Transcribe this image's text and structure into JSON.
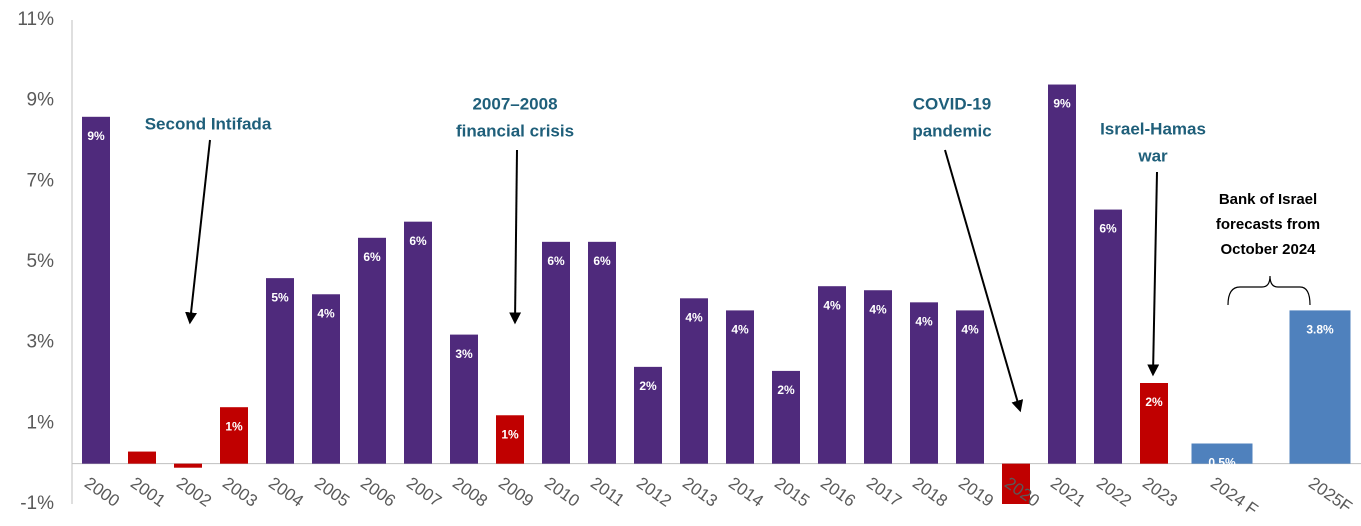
{
  "chart_data": {
    "type": "bar",
    "categories": [
      "2000",
      "2001",
      "2002",
      "2003",
      "2004",
      "2005",
      "2006",
      "2007",
      "2008",
      "2009",
      "2010",
      "2011",
      "2012",
      "2013",
      "2014",
      "2015",
      "2016",
      "2017",
      "2018",
      "2019",
      "2020",
      "2021",
      "2022",
      "2023",
      "2024 F",
      "2025F"
    ],
    "values": [
      8.6,
      0.3,
      -0.1,
      1.4,
      4.6,
      4.2,
      5.6,
      6.0,
      3.2,
      1.2,
      5.5,
      5.5,
      2.4,
      4.1,
      3.8,
      2.3,
      4.4,
      4.3,
      4.0,
      3.8,
      -1.0,
      9.4,
      6.3,
      2.0,
      0.5,
      3.8
    ],
    "value_labels": [
      "9%",
      null,
      null,
      "1%",
      "5%",
      "4%",
      "6%",
      "6%",
      "3%",
      "1%",
      "6%",
      "6%",
      "2%",
      "4%",
      "4%",
      "2%",
      "4%",
      "4%",
      "4%",
      "4%",
      null,
      "9%",
      "6%",
      "2%",
      "0.5%",
      "3.8%"
    ],
    "colors": [
      "#4f2a7c",
      "#c00000",
      "#c00000",
      "#c00000",
      "#4f2a7c",
      "#4f2a7c",
      "#4f2a7c",
      "#4f2a7c",
      "#4f2a7c",
      "#c00000",
      "#4f2a7c",
      "#4f2a7c",
      "#4f2a7c",
      "#4f2a7c",
      "#4f2a7c",
      "#4f2a7c",
      "#4f2a7c",
      "#4f2a7c",
      "#4f2a7c",
      "#4f2a7c",
      "#c00000",
      "#4f2a7c",
      "#4f2a7c",
      "#c00000",
      "#4f81bd",
      "#4f81bd"
    ],
    "ylim": [
      -1,
      11
    ],
    "yticks": [
      {
        "value": 11,
        "label": "11%"
      },
      {
        "value": 9,
        "label": "9%"
      },
      {
        "value": 7,
        "label": "7%"
      },
      {
        "value": 5,
        "label": "5%"
      },
      {
        "value": 3,
        "label": "3%"
      },
      {
        "value": 1,
        "label": "1%"
      },
      {
        "value": -1,
        "label": "-1%"
      }
    ],
    "annotations": [
      {
        "lines": [
          "Second Intifada"
        ]
      },
      {
        "lines": [
          "2007–2008",
          "financial crisis"
        ]
      },
      {
        "lines": [
          "COVID-19",
          "pandemic"
        ]
      },
      {
        "lines": [
          "Israel-Hamas",
          "war"
        ]
      },
      {
        "lines": [
          "Bank of Israel",
          "forecasts from",
          "October 2024"
        ]
      }
    ]
  }
}
